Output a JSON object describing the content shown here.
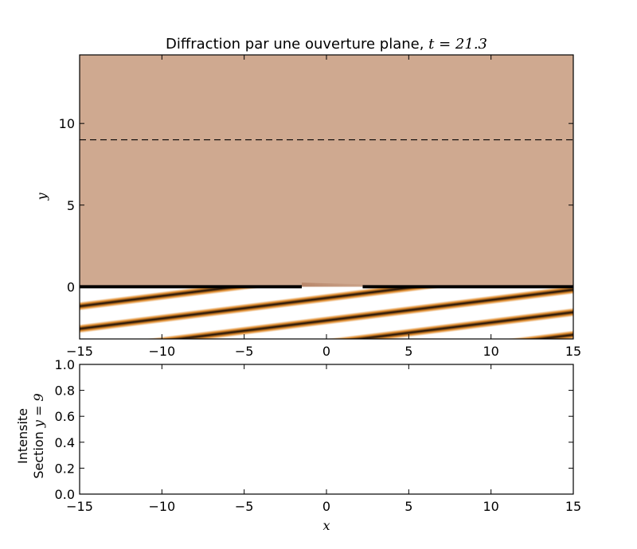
{
  "chart_data": [
    {
      "type": "heatmap",
      "title_prefix": "Diffraction par une ouverture plane, ",
      "title_math": "t = 21.3",
      "ylabel": "y",
      "xlim": [
        -15,
        15
      ],
      "ylim": [
        -3.2,
        14.2
      ],
      "x_ticks": [
        -15,
        -10,
        -5,
        0,
        5,
        10,
        15
      ],
      "x_tick_labels": [
        "−15",
        "−10",
        "−5",
        "0",
        "5",
        "10",
        "15"
      ],
      "y_ticks": [
        0,
        5,
        10
      ],
      "y_tick_labels": [
        "0",
        "5",
        "10"
      ],
      "grid": false,
      "colors": {
        "background": "#cfa990",
        "crest": "#ffffff",
        "trough": "#1a0d05",
        "edge": "#e08a2a",
        "wall": "#000000"
      },
      "wave": {
        "slope": -0.124,
        "wavelength_y": 1.38,
        "region_y": [
          -3.2,
          0
        ]
      },
      "wall": {
        "y": 0,
        "segments": [
          [
            -15,
            -1.5
          ],
          [
            2.2,
            15
          ]
        ]
      },
      "transmitted_hint": {
        "x_start": -1.5,
        "x_end": 5.5,
        "y": 0.25
      },
      "section_line": {
        "y": 9,
        "style": "dashed"
      }
    },
    {
      "type": "line",
      "ylabel_line1": "Intensite",
      "ylabel_line2_prefix": "Section ",
      "ylabel_line2_math": "y = 9",
      "xlabel": "x",
      "xlim": [
        -15,
        15
      ],
      "ylim": [
        0.0,
        1.0
      ],
      "x_ticks": [
        -15,
        -10,
        -5,
        0,
        5,
        10,
        15
      ],
      "x_tick_labels": [
        "−15",
        "−10",
        "−5",
        "0",
        "5",
        "10",
        "15"
      ],
      "y_ticks": [
        0.0,
        0.2,
        0.4,
        0.6,
        0.8,
        1.0
      ],
      "y_tick_labels": [
        "0.0",
        "0.2",
        "0.4",
        "0.6",
        "0.8",
        "1.0"
      ],
      "series": [],
      "grid": false
    }
  ]
}
